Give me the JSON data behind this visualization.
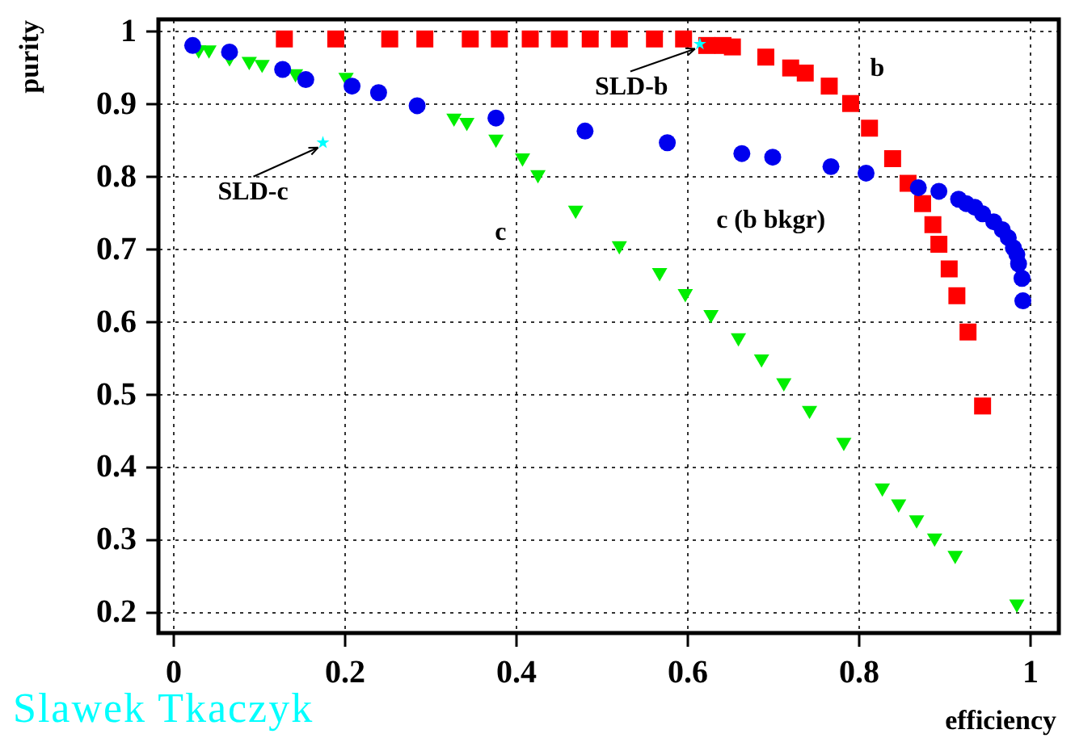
{
  "chart_data": {
    "type": "scatter",
    "xlabel": "efficiency",
    "ylabel": "purity",
    "xlim": [
      -0.017,
      1.034
    ],
    "ylim": [
      0.17,
      1.016
    ],
    "xticks": [
      0,
      0.2,
      0.4,
      0.6,
      0.8,
      1
    ],
    "yticks": [
      0.2,
      0.3,
      0.4,
      0.5,
      0.6,
      0.7,
      0.8,
      0.9,
      1
    ],
    "grid": true,
    "series": [
      {
        "name": "b",
        "color": "#ff0000",
        "marker": "square",
        "x": [
          0.13,
          0.19,
          0.253,
          0.294,
          0.347,
          0.381,
          0.417,
          0.451,
          0.487,
          0.521,
          0.562,
          0.596,
          0.623,
          0.642,
          0.653,
          0.692,
          0.721,
          0.738,
          0.766,
          0.791,
          0.813,
          0.84,
          0.858,
          0.875,
          0.887,
          0.894,
          0.906,
          0.915,
          0.928,
          0.945
        ],
        "values": [
          0.989,
          0.989,
          0.989,
          0.989,
          0.989,
          0.989,
          0.989,
          0.989,
          0.989,
          0.989,
          0.989,
          0.989,
          0.98,
          0.98,
          0.978,
          0.964,
          0.949,
          0.942,
          0.924,
          0.9,
          0.866,
          0.824,
          0.79,
          0.762,
          0.733,
          0.706,
          0.672,
          0.635,
          0.585,
          0.483
        ]
      },
      {
        "name": "c",
        "color": "#00ee00",
        "marker": "triangle",
        "x": [
          0.03,
          0.042,
          0.066,
          0.089,
          0.104,
          0.143,
          0.202,
          0.328,
          0.343,
          0.377,
          0.408,
          0.426,
          0.47,
          0.521,
          0.568,
          0.598,
          0.628,
          0.66,
          0.687,
          0.713,
          0.743,
          0.783,
          0.828,
          0.847,
          0.868,
          0.889,
          0.913,
          0.985
        ],
        "values": [
          0.971,
          0.971,
          0.96,
          0.955,
          0.951,
          0.938,
          0.933,
          0.877,
          0.871,
          0.848,
          0.822,
          0.799,
          0.75,
          0.701,
          0.664,
          0.635,
          0.606,
          0.574,
          0.545,
          0.512,
          0.474,
          0.43,
          0.367,
          0.345,
          0.323,
          0.298,
          0.274,
          0.207
        ]
      },
      {
        "name": "c (b bkgr)",
        "color": "#0000ee",
        "marker": "circle",
        "x": [
          0.023,
          0.066,
          0.128,
          0.155,
          0.209,
          0.24,
          0.285,
          0.377,
          0.481,
          0.577,
          0.664,
          0.7,
          0.768,
          0.809,
          0.87,
          0.894,
          0.917,
          0.926,
          0.936,
          0.945,
          0.958,
          0.968,
          0.975,
          0.981,
          0.985,
          0.987,
          0.991,
          0.992
        ],
        "values": [
          0.98,
          0.971,
          0.947,
          0.933,
          0.924,
          0.915,
          0.897,
          0.88,
          0.862,
          0.846,
          0.831,
          0.826,
          0.813,
          0.804,
          0.784,
          0.779,
          0.768,
          0.762,
          0.757,
          0.748,
          0.737,
          0.726,
          0.715,
          0.701,
          0.692,
          0.679,
          0.659,
          0.628
        ]
      },
      {
        "name": "SLD-c",
        "color": "#00ffff",
        "marker": "star",
        "x": [
          0.175
        ],
        "values": [
          0.846
        ]
      },
      {
        "name": "SLD-b",
        "color": "#00ffff",
        "marker": "star",
        "x": [
          0.615
        ],
        "values": [
          0.982
        ]
      }
    ],
    "annotations": [
      "Slawek Tkaczyk"
    ]
  }
}
